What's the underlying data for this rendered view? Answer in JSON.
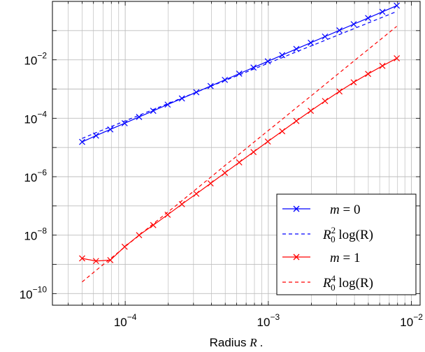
{
  "chart_data": {
    "type": "line",
    "xscale": "log",
    "yscale": "log",
    "xlabel": "Radius",
    "xlabel_var": "R",
    "xlabel_suffix": ".",
    "ylabel": "",
    "title": "",
    "xlim": [
      3.1e-05,
      0.0115
    ],
    "ylim": [
      4e-11,
      1.0
    ],
    "grid": true,
    "legend_position": "bottom-right",
    "x_ticks": [
      {
        "value": 0.0001,
        "base": "10",
        "exp": "−4"
      },
      {
        "value": 0.001,
        "base": "10",
        "exp": "−3"
      },
      {
        "value": 0.01,
        "base": "10",
        "exp": "−2"
      }
    ],
    "y_ticks": [
      {
        "value": 1e-10,
        "base": "10",
        "exp": "−10"
      },
      {
        "value": 1e-08,
        "base": "10",
        "exp": "−8"
      },
      {
        "value": 1e-06,
        "base": "10",
        "exp": "−6"
      },
      {
        "value": 0.0001,
        "base": "10",
        "exp": "−4"
      },
      {
        "value": 0.01,
        "base": "10",
        "exp": "−2"
      }
    ],
    "x": [
      5e-05,
      6.25e-05,
      7.87e-05,
      9.91e-05,
      0.000125,
      0.000157,
      0.000198,
      0.000249,
      0.000314,
      0.000395,
      0.000497,
      0.000626,
      0.000788,
      0.000992,
      0.00125,
      0.00157,
      0.00198,
      0.00249,
      0.00314,
      0.00395,
      0.00498,
      0.00627,
      0.0079
    ],
    "series": [
      {
        "name": "m = 0",
        "color": "#0000ff",
        "style": "solid",
        "marker": "x",
        "y": [
          1.55e-05,
          2.55e-05,
          4.16e-05,
          6.78e-05,
          0.000111,
          0.00018,
          0.000294,
          0.000478,
          0.000778,
          0.00127,
          0.00206,
          0.00336,
          0.00546,
          0.0089,
          0.0145,
          0.0236,
          0.0384,
          0.0625,
          0.102,
          0.166,
          0.27,
          0.44,
          0.715
        ]
      },
      {
        "name": "R_0^2 log(R)",
        "color": "#0000ff",
        "style": "dashed",
        "marker": "none",
        "y": [
          2.04e-05,
          3.22e-05,
          5.07e-05,
          8e-05,
          0.000127,
          0.000199,
          0.000314,
          0.000495,
          0.00078,
          0.00123,
          0.00194,
          0.00305,
          0.0048,
          0.0076,
          0.0119,
          0.0188,
          0.0296,
          0.0466,
          0.0734,
          0.1156,
          0.182,
          0.287,
          0.452
        ]
      },
      {
        "name": "m = 1",
        "color": "#ff0000",
        "style": "solid",
        "marker": "x",
        "y": [
          1.6e-09,
          1.3e-09,
          1.4e-09,
          4e-09,
          1e-08,
          2.2e-08,
          5e-08,
          1.15e-07,
          2.6e-07,
          5.9e-07,
          1.35e-06,
          3.1e-06,
          7e-06,
          1.6e-05,
          3.6e-05,
          8.1e-05,
          0.00018,
          0.00039,
          0.00083,
          0.0017,
          0.0033,
          0.0062,
          0.0113
        ]
      },
      {
        "name": "R_0^4 log(R)",
        "color": "#ff0000",
        "style": "dashed",
        "marker": "none",
        "y": [
          2.5e-10,
          6.2e-10,
          1.55e-09,
          3.9e-09,
          9.8e-09,
          2.45e-08,
          6.1e-08,
          1.5e-07,
          3.8e-07,
          9.5e-07,
          2.4e-06,
          5.9e-06,
          1.48e-05,
          3.7e-05,
          9.2e-05,
          0.00023,
          0.00057,
          0.00143,
          0.0036,
          0.009,
          0.0225,
          0.056,
          0.14
        ]
      }
    ]
  },
  "legend": {
    "items": [
      {
        "var": "m",
        "rel": " = 0"
      },
      {
        "prefix": "R",
        "sub": "0",
        "sup": "2",
        "suffix": " log(R)"
      },
      {
        "var": "m",
        "rel": " = 1"
      },
      {
        "prefix": "R",
        "sub": "0",
        "sup": "4",
        "suffix": " log(R)"
      }
    ]
  }
}
